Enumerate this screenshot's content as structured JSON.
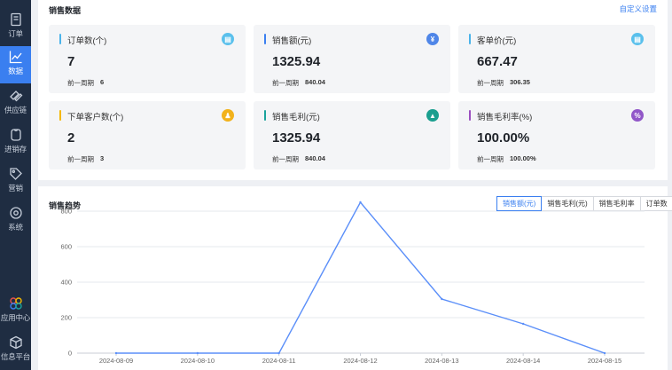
{
  "colors": {
    "sidebar_bg": "#1f2d42",
    "accent": "#3a7ff0",
    "line": "#5b8ff9"
  },
  "sidebar": {
    "items": [
      {
        "label": "订单",
        "icon": "order-icon",
        "active": false
      },
      {
        "label": "数据",
        "icon": "chart-icon",
        "active": true
      },
      {
        "label": "供应链",
        "icon": "supply-chain-icon",
        "active": false
      },
      {
        "label": "进销存",
        "icon": "inventory-icon",
        "active": false
      },
      {
        "label": "营销",
        "icon": "tag-icon",
        "active": false
      },
      {
        "label": "系统",
        "icon": "gear-icon",
        "active": false
      },
      {
        "label": "应用中心",
        "icon": "apps-icon",
        "active": false
      },
      {
        "label": "信息平台",
        "icon": "cube-icon",
        "active": false
      }
    ]
  },
  "sales_data": {
    "title": "销售数据",
    "customize_label": "自定义设置",
    "prev_label": "前一周期",
    "cards": [
      {
        "title": "订单数(个)",
        "value": "7",
        "prev": "6",
        "bar_color": "#4ab3ea",
        "icon_color": "#5ac0ec",
        "icon": "document-icon",
        "glyph": "▤"
      },
      {
        "title": "销售额(元)",
        "value": "1325.94",
        "prev": "840.04",
        "bar_color": "#3a7ff0",
        "icon_color": "#4f86e8",
        "icon": "yen-icon",
        "glyph": "¥"
      },
      {
        "title": "客单价(元)",
        "value": "667.47",
        "prev": "306.35",
        "bar_color": "#4ab3ea",
        "icon_color": "#5ac0ec",
        "icon": "document-icon",
        "glyph": "▤"
      },
      {
        "title": "下单客户数(个)",
        "value": "2",
        "prev": "3",
        "bar_color": "#f5b800",
        "icon_color": "#f2b21c",
        "icon": "user-icon",
        "glyph": "♟"
      },
      {
        "title": "销售毛利(元)",
        "value": "1325.94",
        "prev": "840.04",
        "bar_color": "#1aa39c",
        "icon_color": "#1b9f8f",
        "icon": "money-bag-icon",
        "glyph": "▲"
      },
      {
        "title": "销售毛利率(%)",
        "value": "100.00%",
        "prev": "100.00%",
        "bar_color": "#9b4fc0",
        "icon_color": "#9157c8",
        "icon": "percent-icon",
        "glyph": "%"
      }
    ]
  },
  "trend": {
    "title": "销售趋势",
    "tabs": [
      {
        "label": "销售额(元)",
        "active": true
      },
      {
        "label": "销售毛利(元)",
        "active": false
      },
      {
        "label": "销售毛利率",
        "active": false
      },
      {
        "label": "订单数",
        "active": false
      }
    ]
  },
  "chart_data": {
    "type": "line",
    "x": [
      "2024-08-09",
      "2024-08-10",
      "2024-08-11",
      "2024-08-12",
      "2024-08-13",
      "2024-08-14",
      "2024-08-15"
    ],
    "series": [
      {
        "values": [
          0,
          0,
          0,
          850,
          305,
          165,
          0
        ]
      }
    ],
    "y_ticks": [
      0,
      200,
      400,
      600,
      800
    ],
    "ylim": [
      0,
      900
    ],
    "grid": true,
    "legend": "none"
  }
}
